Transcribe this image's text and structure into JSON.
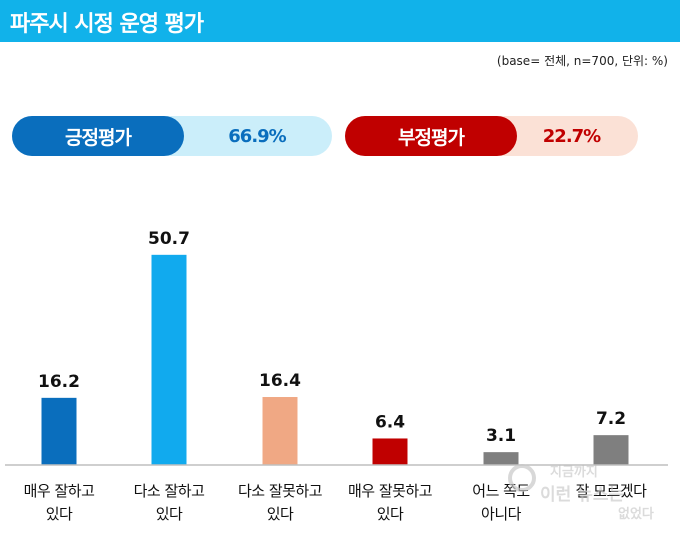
{
  "header": {
    "title": "파주시 시정 운영 평가",
    "note": "(base= 전체, n=700, 단위: %)"
  },
  "summary": {
    "positive": {
      "label": "긍정평가",
      "value": "66.9%"
    },
    "negative": {
      "label": "부정평가",
      "value": "22.7%"
    }
  },
  "colors": {
    "header": "#11b2ea",
    "positive_dark": "#0a6ebd",
    "positive_light": "#cbeefa",
    "negative_dark": "#c00000",
    "negative_light": "#fbe1d6"
  },
  "chart_data": {
    "type": "bar",
    "categories": [
      [
        "매우 잘하고",
        "있다"
      ],
      [
        "다소 잘하고",
        "있다"
      ],
      [
        "다소 잘못하고",
        "있다"
      ],
      [
        "매우 잘못하고",
        "있다"
      ],
      [
        "어느 쪽도",
        "아니다"
      ],
      [
        "잘 모르겠다",
        ""
      ]
    ],
    "values": [
      16.2,
      50.7,
      16.4,
      6.4,
      3.1,
      7.2
    ],
    "value_labels": [
      "16.2",
      "50.7",
      "16.4",
      "6.4",
      "3.1",
      "7.2"
    ],
    "bar_colors": [
      "#0a6ebd",
      "#11aaee",
      "#f0a884",
      "#c00000",
      "#7f7f7f",
      "#7f7f7f"
    ],
    "ylim": [
      0,
      55
    ],
    "grid": false,
    "legend": "none"
  },
  "watermark": {
    "lines": [
      "지금까지",
      "이런 뉴스는",
      "없었다"
    ]
  }
}
